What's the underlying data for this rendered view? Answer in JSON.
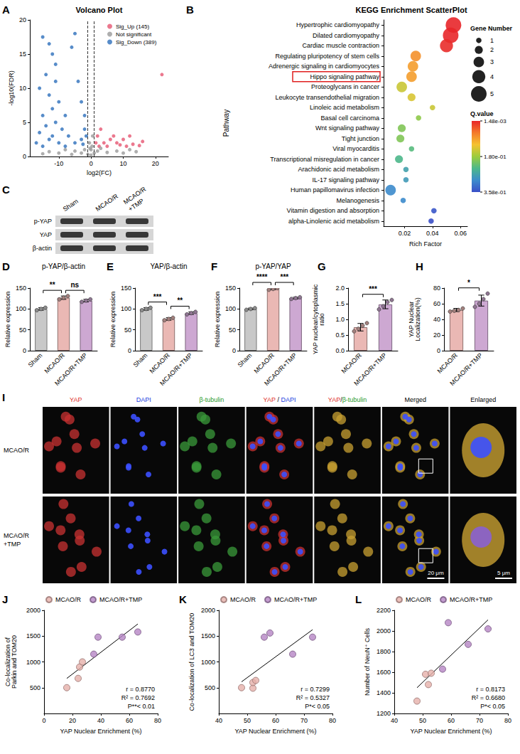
{
  "chart_data": [
    {
      "panel_label": "A",
      "type": "scatter",
      "title": "Volcano Plot",
      "x_label": "log2(FC)",
      "y_label": "-log10(FDR)",
      "xlim": [
        -19,
        24
      ],
      "xticks": [
        -10,
        0,
        10,
        20
      ],
      "ylim": [
        0,
        20
      ],
      "yticks": [
        0,
        5,
        10,
        15,
        20
      ],
      "thresholds": [
        -1,
        1
      ],
      "legend": "upper right",
      "series": [
        {
          "name": "Sig_Up (145)",
          "color": "#e8607a",
          "x": [
            22,
            12,
            10,
            8,
            13,
            6,
            3,
            2,
            1.5,
            4,
            15,
            11,
            9,
            5,
            2.5,
            7,
            16
          ],
          "values": [
            12,
            3,
            2.5,
            2,
            1.8,
            2.5,
            4,
            3,
            2,
            2,
            1.6,
            1.5,
            1.7,
            1.5,
            1.5,
            3,
            2.2
          ]
        },
        {
          "name": "Not significant",
          "color": "#a0a0a0",
          "x": [
            -10,
            -8,
            -5,
            -3,
            -2,
            -1,
            0,
            0,
            1,
            2,
            5,
            8,
            10,
            -13,
            -15,
            3,
            -0.5,
            0.5,
            0.3,
            -0.3,
            12,
            14,
            -6
          ],
          "values": [
            0.5,
            1,
            0.8,
            0.5,
            1,
            0.3,
            0.2,
            1,
            0.5,
            0.8,
            0.6,
            0.8,
            0.5,
            0.7,
            0.4,
            1.2,
            2,
            3,
            1.5,
            1.2,
            1,
            0.7,
            0.3
          ]
        },
        {
          "name": "Sig_Down (389)",
          "color": "#3a78c0",
          "x": [
            -15,
            -13,
            -12,
            -5,
            -6,
            -14,
            -11,
            -16,
            -13,
            -10,
            -12,
            -15,
            -8,
            -11,
            -14,
            -9,
            -16,
            -12,
            -7,
            -13,
            -10,
            -17,
            -5,
            -3,
            -2,
            -2,
            -3,
            -11,
            -4,
            -1.5,
            -2.5,
            -15,
            -8
          ],
          "values": [
            17.5,
            16.5,
            15,
            18,
            16,
            12,
            11,
            10,
            9,
            8,
            7,
            6,
            6,
            5,
            4.5,
            4,
            3.5,
            3,
            3,
            2.5,
            2,
            2,
            2,
            2.5,
            4,
            6,
            8,
            13.5,
            11,
            3,
            1.8,
            1.5,
            1.5
          ]
        }
      ]
    },
    {
      "panel_label": "B",
      "type": "scatter",
      "title": "KEGG Enrichment ScatterPlot",
      "x_label": "Rich Factor",
      "y_label": "Pathway",
      "categories": [
        "Hypertrophic cardiomyopathy",
        "Dilated cardiomyopathy",
        "Cardiac muscle contraction",
        "Regulating pluripotency of stem cells",
        "Adrenergic signaling in cardiomyocytes",
        "Hippo signaling pathway",
        "Proteoglycans in cancer",
        "Leukocyte transendothelial migration",
        "Linoleic acid metabolism",
        "Basal cell carcinoma",
        "Wnt signaling pathway",
        "Tight junction",
        "Viral myocarditis",
        "Transcriptional misregulation in cancer",
        "Arachidonic acid metabolism",
        "IL-17 signaling pathway",
        "Human papillomavirus infection",
        "Melanogenesis",
        "Vitamin digestion and absorption",
        "alpha-Linolenic acid metabolism"
      ],
      "values": [
        0.055,
        0.053,
        0.05,
        0.028,
        0.026,
        0.025,
        0.018,
        0.025,
        0.04,
        0.03,
        0.018,
        0.017,
        0.025,
        0.016,
        0.021,
        0.021,
        0.01,
        0.019,
        0.041,
        0.039
      ],
      "gene_number": [
        5,
        5,
        4,
        3,
        3,
        3,
        3,
        2,
        1,
        1,
        2,
        2,
        1,
        2,
        1,
        1,
        3,
        1,
        1,
        1
      ],
      "q_value": [
        0.0015,
        0.0025,
        0.006,
        0.08,
        0.09,
        0.09,
        0.15,
        0.14,
        0.15,
        0.19,
        0.2,
        0.2,
        0.23,
        0.24,
        0.27,
        0.28,
        0.3,
        0.3,
        0.35,
        0.358
      ],
      "xlim": [
        0.005,
        0.065
      ],
      "xticks": [
        0.02,
        0.04,
        0.06
      ],
      "highlight": "Hippo signaling pathway",
      "size_legend": {
        "title": "Gene Number",
        "values": [
          1,
          2,
          3,
          4,
          5
        ]
      },
      "color_bar": {
        "title": "Q.value",
        "range": [
          0.00148,
          0.358
        ],
        "ticks": [
          {
            "value": 0.00148,
            "label": "1.48e-03"
          },
          {
            "value": 0.18,
            "label": "1.80e-01"
          },
          {
            "value": 0.358,
            "label": "3.58e-01"
          }
        ]
      }
    },
    {
      "panel_label": "D",
      "type": "bar",
      "title": "p-YAP/β-actin",
      "y_label": "Relative expression",
      "categories": [
        "Sham",
        "MCAO/R",
        "MCAO/R+TMP"
      ],
      "colors": [
        "#c8c8c8",
        "#eab8b4",
        "#cda8d2"
      ],
      "values": [
        100,
        127,
        120
      ],
      "errors": [
        3,
        4,
        3
      ],
      "points": [
        [
          97,
          100,
          103
        ],
        [
          123,
          127,
          131
        ],
        [
          117,
          120,
          123
        ]
      ],
      "ylim": [
        0,
        150
      ],
      "yticks": [
        0,
        50,
        100,
        150
      ],
      "comparisons": [
        {
          "groups": [
            0,
            1
          ],
          "label": "**"
        },
        {
          "groups": [
            1,
            2
          ],
          "label": "ns"
        }
      ]
    },
    {
      "panel_label": "E",
      "type": "bar",
      "title": "YAP/β-actin",
      "y_label": "Relative expression",
      "categories": [
        "Sham",
        "MCAO/R",
        "MCAO/R+TMP"
      ],
      "colors": [
        "#c8c8c8",
        "#eab8b4",
        "#cda8d2"
      ],
      "values": [
        100,
        76,
        90
      ],
      "errors": [
        3,
        3,
        3
      ],
      "points": [
        [
          97,
          100,
          103
        ],
        [
          73,
          76,
          79
        ],
        [
          87,
          90,
          93
        ]
      ],
      "ylim": [
        0,
        150
      ],
      "yticks": [
        0,
        50,
        100,
        150
      ],
      "comparisons": [
        {
          "groups": [
            0,
            1
          ],
          "label": "***"
        },
        {
          "groups": [
            1,
            2
          ],
          "label": "**"
        }
      ]
    },
    {
      "panel_label": "F",
      "type": "bar",
      "title": "p-YAP/YAP",
      "y_label": "Relative expression",
      "categories": [
        "Sham",
        "MCAO/R",
        "MCAO/R+TMP"
      ],
      "colors": [
        "#c8c8c8",
        "#eab8b4",
        "#cda8d2"
      ],
      "values": [
        100,
        148,
        126
      ],
      "errors": [
        2,
        2,
        2
      ],
      "points": [
        [
          98,
          100,
          102
        ],
        [
          146,
          148,
          150
        ],
        [
          124,
          126,
          128
        ]
      ],
      "ylim": [
        0,
        150
      ],
      "yticks": [
        0,
        50,
        100,
        150
      ],
      "comparisons": [
        {
          "groups": [
            0,
            1
          ],
          "label": "****"
        },
        {
          "groups": [
            1,
            2
          ],
          "label": "***"
        }
      ]
    },
    {
      "panel_label": "G",
      "type": "bar",
      "y_label": "YAP nuclear/cytoplasmic ratio",
      "categories": [
        "MCAO/R",
        "MCAO/R+TMP"
      ],
      "colors": [
        "#eab8b4",
        "#cda8d2"
      ],
      "values": [
        0.75,
        1.48
      ],
      "errors": [
        0.12,
        0.14
      ],
      "points": [
        [
          0.62,
          0.7,
          0.8,
          0.88
        ],
        [
          1.32,
          1.42,
          1.55,
          1.62
        ]
      ],
      "ylim": [
        0,
        2
      ],
      "yticks": [
        {
          "value": 0,
          "label": "0.0"
        },
        {
          "value": 0.5,
          "label": "0.5"
        },
        {
          "value": 1,
          "label": "1.0"
        },
        {
          "value": 1.5,
          "label": "1.5"
        },
        {
          "value": 2,
          "label": "2.0"
        }
      ],
      "comparisons": [
        {
          "groups": [
            0,
            1
          ],
          "label": "***"
        }
      ]
    },
    {
      "panel_label": "H",
      "type": "bar",
      "y_label": "YAP Nuclear Localization(%)",
      "categories": [
        "MCAO/R",
        "MCAO/R+TMP"
      ],
      "colors": [
        "#eab8b4",
        "#cda8d2"
      ],
      "values": [
        52,
        64
      ],
      "errors": [
        2,
        7
      ],
      "points": [
        [
          50,
          51,
          52,
          54
        ],
        [
          56,
          60,
          66,
          73
        ]
      ],
      "ylim": [
        0,
        80
      ],
      "yticks": [
        0,
        20,
        40,
        60,
        80
      ],
      "comparisons": [
        {
          "groups": [
            0,
            1
          ],
          "label": "*"
        }
      ]
    },
    {
      "panel_label": "J",
      "type": "scatter",
      "x_label": "YAP Nuclear Enrichment (%)",
      "y_label": "Co-localization of Parkin and TOM20",
      "xlim": [
        0,
        80
      ],
      "xticks": [
        0,
        20,
        40,
        60,
        80
      ],
      "ylim": [
        0,
        2000
      ],
      "yticks": [
        500,
        1000,
        1500,
        2000
      ],
      "legend": "top",
      "line_style": "solid",
      "annotations": [
        "r = 0.8770",
        "R² = 0.7692",
        "P**< 0.01"
      ],
      "series": [
        {
          "name": "MCAO/R",
          "color": "#e6b0aa",
          "x": [
            16,
            24,
            25,
            27
          ],
          "values": [
            500,
            680,
            900,
            1000
          ]
        },
        {
          "name": "MCAO/R+TMP",
          "color": "#b585c4",
          "x": [
            35,
            38,
            55,
            66
          ],
          "values": [
            1150,
            1480,
            1480,
            1580
          ]
        }
      ]
    },
    {
      "panel_label": "K",
      "type": "scatter",
      "x_label": "YAP Nuclear Enrichment (%)",
      "y_label": "Co-localization of LC3 and TOM20",
      "xlim": [
        40,
        80
      ],
      "xticks": [
        40,
        50,
        60,
        70,
        80
      ],
      "ylim": [
        0,
        2000
      ],
      "yticks": [
        500,
        1000,
        1500,
        2000
      ],
      "legend": "top",
      "line_style": "solid",
      "annotations": [
        "r = 0.7299",
        "R² = 0.5327",
        "P*< 0.05"
      ],
      "series": [
        {
          "name": "MCAO/R",
          "color": "#e6b0aa",
          "x": [
            48,
            52,
            52,
            53
          ],
          "values": [
            500,
            490,
            600,
            640
          ]
        },
        {
          "name": "MCAO/R+TMP",
          "color": "#b585c4",
          "x": [
            56,
            58,
            66,
            73
          ],
          "values": [
            1480,
            1560,
            1150,
            1480
          ]
        }
      ]
    },
    {
      "panel_label": "L",
      "type": "scatter",
      "x_label": "YAP Nuclear Enrichment (%)",
      "y_label": "Number of NeuN⁺ Cells",
      "xlim": [
        40,
        80
      ],
      "xticks": [
        40,
        50,
        60,
        70,
        80
      ],
      "ylim": [
        1200,
        2200
      ],
      "yticks": [
        1200,
        1400,
        1600,
        1800,
        2000,
        2200
      ],
      "legend": "top",
      "line_style": "solid",
      "annotations": [
        "r = 0.8173",
        "R² = 0.6680",
        "P*< 0.05"
      ],
      "series": [
        {
          "name": "MCAO/R",
          "color": "#e6b0aa",
          "x": [
            48,
            51,
            52,
            53
          ],
          "values": [
            1320,
            1580,
            1480,
            1590
          ]
        },
        {
          "name": "MCAO/R+TMP",
          "color": "#b585c4",
          "x": [
            57,
            59,
            66,
            73
          ],
          "values": [
            1630,
            2080,
            1870,
            2020
          ]
        }
      ]
    }
  ],
  "western_blot": {
    "panel_label": "C",
    "lanes": [
      "Sham",
      "MCAO/R",
      "MCAO/R+TMP"
    ],
    "rows": [
      "p-YAP",
      "YAP",
      "β-actin"
    ]
  },
  "immunofluorescence": {
    "panel_label": "I",
    "columns": [
      {
        "parts": [
          {
            "text": "YAP",
            "color": "#e0302a"
          }
        ]
      },
      {
        "parts": [
          {
            "text": "DAPI",
            "color": "#2040e0"
          }
        ]
      },
      {
        "parts": [
          {
            "text": "β-tubulin",
            "color": "#2a9a2a"
          }
        ]
      },
      {
        "parts": [
          {
            "text": "YAP",
            "color": "#e0302a"
          },
          {
            "text": " / ",
            "color": "#000000"
          },
          {
            "text": "DAPI",
            "color": "#2040e0"
          }
        ]
      },
      {
        "parts": [
          {
            "text": "YAP",
            "color": "#e0302a"
          },
          {
            "text": "/",
            "color": "#000000"
          },
          {
            "text": "β-tubulin",
            "color": "#2a9a2a"
          }
        ]
      },
      {
        "parts": [
          {
            "text": "Merged",
            "color": "#000000"
          }
        ]
      },
      {
        "parts": [
          {
            "text": "Enlarged",
            "color": "#000000"
          }
        ]
      }
    ],
    "rows": [
      "MCAO/R",
      "MCAO/R+TMP"
    ],
    "scale_bars": [
      {
        "column": 5,
        "label": "20 μm"
      },
      {
        "column": 6,
        "label": "5 μm"
      }
    ]
  }
}
